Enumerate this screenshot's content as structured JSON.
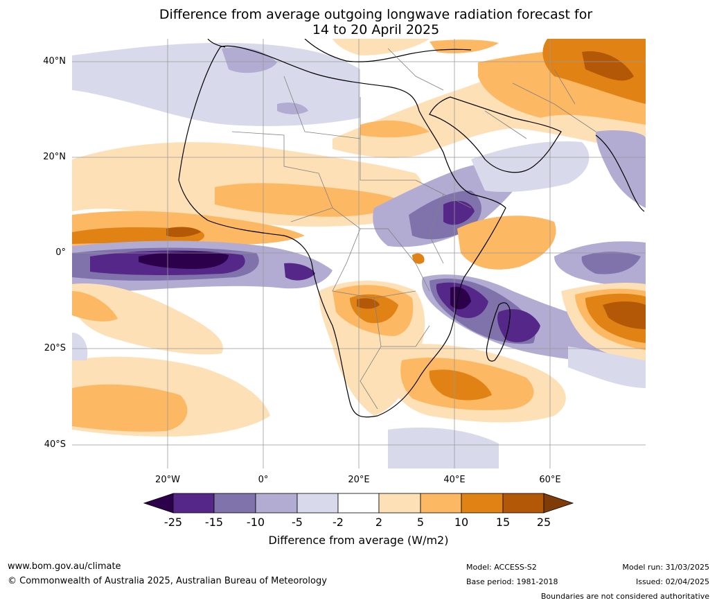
{
  "title": {
    "line1": "Difference from average outgoing longwave radiation forecast for",
    "line2": "14 to 20 April 2025"
  },
  "map": {
    "lat_labels": [
      "40°N",
      "20°N",
      "0°",
      "20°S",
      "40°S"
    ],
    "lon_labels": [
      "20°W",
      "0°",
      "20°E",
      "40°E",
      "60°E"
    ],
    "border_color": "#000000"
  },
  "legend": {
    "ticks": [
      "-25",
      "-15",
      "-10",
      "-5",
      "-2",
      "2",
      "5",
      "10",
      "15",
      "25"
    ],
    "colors": [
      "#2d004b",
      "#542788",
      "#8073ac",
      "#b2abd2",
      "#d8daeb",
      "#ffffff",
      "#fee0b6",
      "#fdb863",
      "#e08214",
      "#b35806",
      "#7f3b08"
    ],
    "label": "Difference from average (W/m2)"
  },
  "footer": {
    "website": "www.bom.gov.au/climate",
    "copyright": "© Commonwealth of Australia 2025, Australian Bureau of Meteorology",
    "model": "Model: ACCESS-S2",
    "base_period": "Base period: 1981-2018",
    "model_run": "Model run: 31/03/2025",
    "issued": "Issued: 02/04/2025",
    "boundaries_note": "Boundaries are not considered authoritative"
  }
}
